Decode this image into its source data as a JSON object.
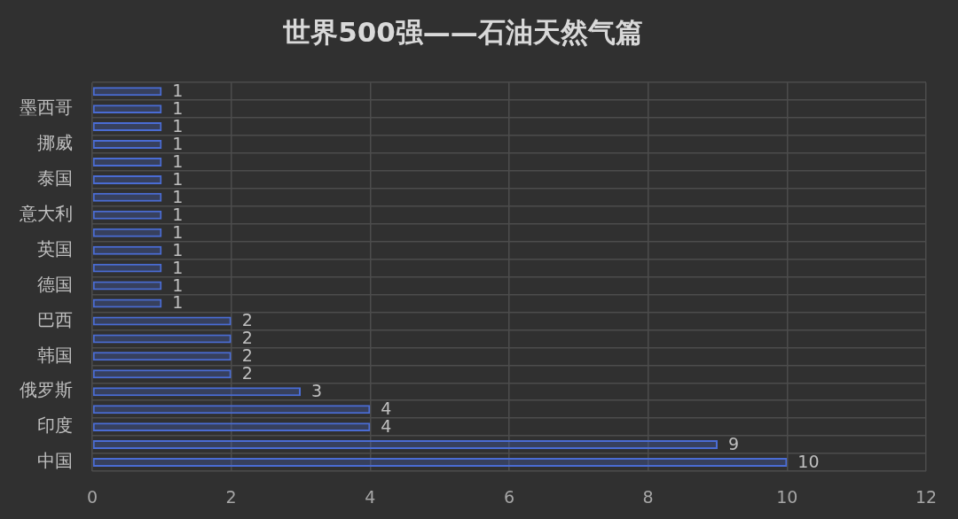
{
  "chart_data": {
    "type": "bar",
    "orientation": "horizontal",
    "title": "世界500强——石油天然气篇",
    "categories": [
      null,
      "墨西哥",
      null,
      "挪威",
      null,
      "泰国",
      null,
      "意大利",
      null,
      "英国",
      null,
      "德国",
      null,
      "巴西",
      null,
      "韩国",
      null,
      "俄罗斯",
      null,
      "印度",
      null,
      "中国"
    ],
    "values": [
      1,
      1,
      1,
      1,
      1,
      1,
      1,
      1,
      1,
      1,
      1,
      1,
      1,
      2,
      2,
      2,
      2,
      3,
      4,
      4,
      9,
      10
    ],
    "color": "#4a6cd4",
    "xlim": [
      0,
      12
    ],
    "xticks": [
      0,
      2,
      4,
      6,
      8,
      10,
      12
    ],
    "grid": true,
    "data_labels": true
  }
}
